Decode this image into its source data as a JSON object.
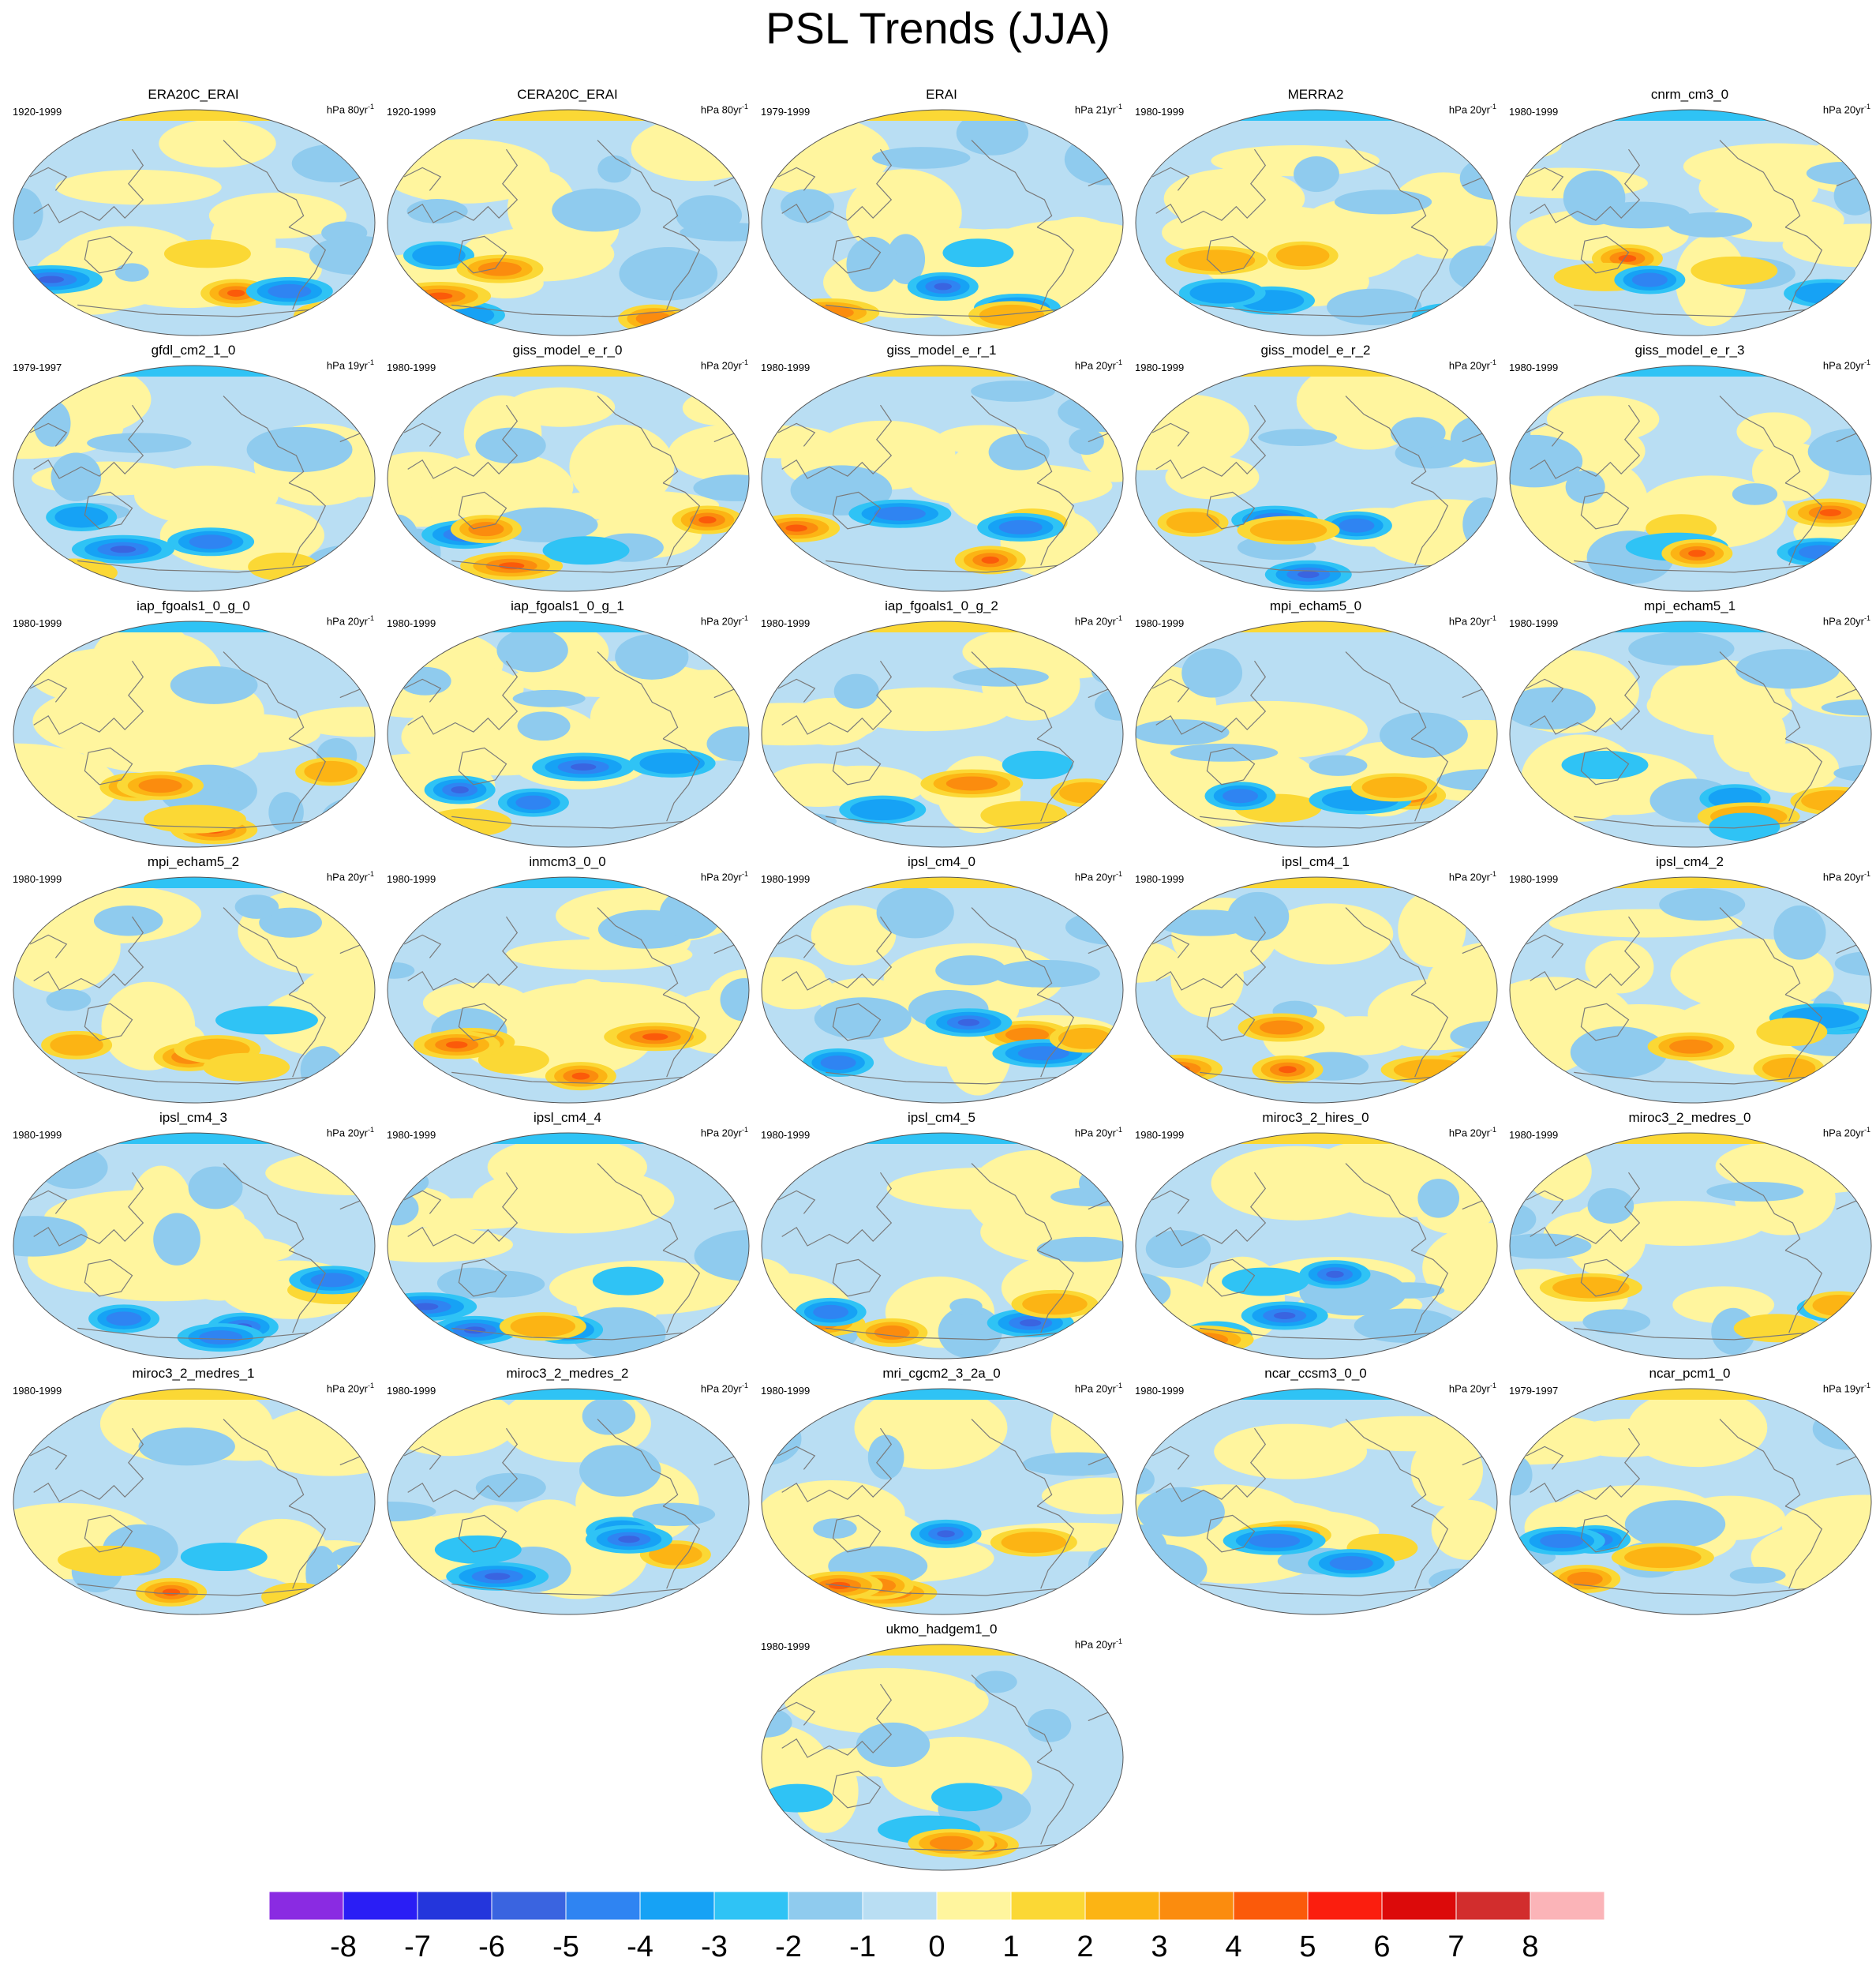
{
  "title": "PSL Trends (JJA)",
  "units_prefix": "hPa",
  "units_suffix": "yr",
  "units_exp": "-1",
  "panels": [
    {
      "name": "ERA20C_ERAI",
      "years": "1920-1999",
      "span": "80",
      "pattern": 0
    },
    {
      "name": "CERA20C_ERAI",
      "years": "1920-1999",
      "span": "80",
      "pattern": 1
    },
    {
      "name": "ERAI",
      "years": "1979-1999",
      "span": "21",
      "pattern": 2
    },
    {
      "name": "MERRA2",
      "years": "1980-1999",
      "span": "20",
      "pattern": 3
    },
    {
      "name": "cnrm_cm3_0",
      "years": "1980-1999",
      "span": "20",
      "pattern": 4
    },
    {
      "name": "gfdl_cm2_1_0",
      "years": "1979-1997",
      "span": "19",
      "pattern": 5
    },
    {
      "name": "giss_model_e_r_0",
      "years": "1980-1999",
      "span": "20",
      "pattern": 6
    },
    {
      "name": "giss_model_e_r_1",
      "years": "1980-1999",
      "span": "20",
      "pattern": 7
    },
    {
      "name": "giss_model_e_r_2",
      "years": "1980-1999",
      "span": "20",
      "pattern": 8
    },
    {
      "name": "giss_model_e_r_3",
      "years": "1980-1999",
      "span": "20",
      "pattern": 9
    },
    {
      "name": "iap_fgoals1_0_g_0",
      "years": "1980-1999",
      "span": "20",
      "pattern": 10
    },
    {
      "name": "iap_fgoals1_0_g_1",
      "years": "1980-1999",
      "span": "20",
      "pattern": 11
    },
    {
      "name": "iap_fgoals1_0_g_2",
      "years": "1980-1999",
      "span": "20",
      "pattern": 12
    },
    {
      "name": "mpi_echam5_0",
      "years": "1980-1999",
      "span": "20",
      "pattern": 13
    },
    {
      "name": "mpi_echam5_1",
      "years": "1980-1999",
      "span": "20",
      "pattern": 14
    },
    {
      "name": "mpi_echam5_2",
      "years": "1980-1999",
      "span": "20",
      "pattern": 15
    },
    {
      "name": "inmcm3_0_0",
      "years": "1980-1999",
      "span": "20",
      "pattern": 16
    },
    {
      "name": "ipsl_cm4_0",
      "years": "1980-1999",
      "span": "20",
      "pattern": 17
    },
    {
      "name": "ipsl_cm4_1",
      "years": "1980-1999",
      "span": "20",
      "pattern": 18
    },
    {
      "name": "ipsl_cm4_2",
      "years": "1980-1999",
      "span": "20",
      "pattern": 19
    },
    {
      "name": "ipsl_cm4_3",
      "years": "1980-1999",
      "span": "20",
      "pattern": 20
    },
    {
      "name": "ipsl_cm4_4",
      "years": "1980-1999",
      "span": "20",
      "pattern": 21
    },
    {
      "name": "ipsl_cm4_5",
      "years": "1980-1999",
      "span": "20",
      "pattern": 22
    },
    {
      "name": "miroc3_2_hires_0",
      "years": "1980-1999",
      "span": "20",
      "pattern": 23
    },
    {
      "name": "miroc3_2_medres_0",
      "years": "1980-1999",
      "span": "20",
      "pattern": 24
    },
    {
      "name": "miroc3_2_medres_1",
      "years": "1980-1999",
      "span": "20",
      "pattern": 25
    },
    {
      "name": "miroc3_2_medres_2",
      "years": "1980-1999",
      "span": "20",
      "pattern": 26
    },
    {
      "name": "mri_cgcm2_3_2a_0",
      "years": "1980-1999",
      "span": "20",
      "pattern": 27
    },
    {
      "name": "ncar_ccsm3_0_0",
      "years": "1980-1999",
      "span": "20",
      "pattern": 28
    },
    {
      "name": "ncar_pcm1_0",
      "years": "1979-1997",
      "span": "19",
      "pattern": 29
    },
    {
      "name": "ukmo_hadgem1_0",
      "years": "1980-1999",
      "span": "20",
      "pattern": 30
    }
  ],
  "colorbar": {
    "labels": [
      "-8",
      "-7",
      "-6",
      "-5",
      "-4",
      "-3",
      "-2",
      "-1",
      "0",
      "1",
      "2",
      "3",
      "4",
      "5",
      "6",
      "7",
      "8"
    ],
    "colors": [
      "#8a2be2",
      "#2a1ef5",
      "#2436dc",
      "#3a64e0",
      "#2f84f2",
      "#16a2f5",
      "#2fc3f5",
      "#8fcbee",
      "#b9def3",
      "#fff59e",
      "#fbd835",
      "#fcb414",
      "#fb8c0e",
      "#fb5a0a",
      "#fb1e0e",
      "#dc0a0a",
      "#d22d2d",
      "#fbb4b8"
    ]
  }
}
